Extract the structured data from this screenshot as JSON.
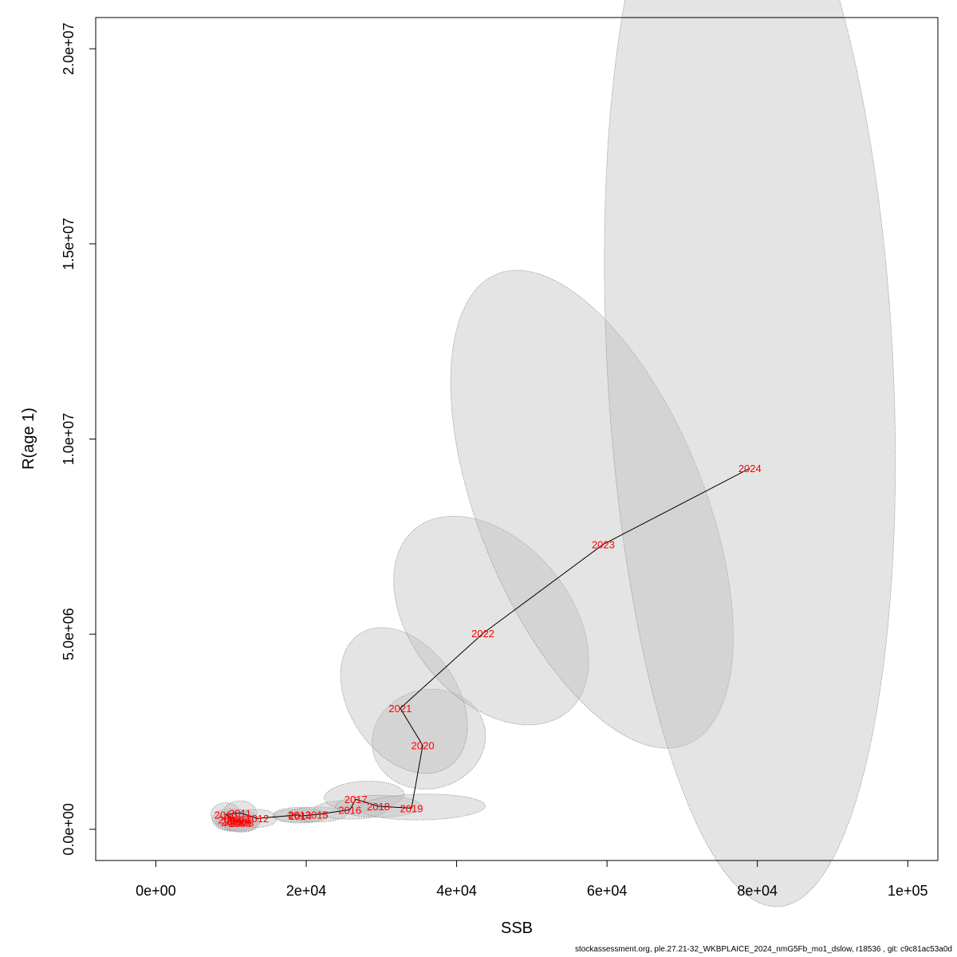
{
  "chart_data": {
    "type": "scatter",
    "xlabel": "SSB",
    "ylabel": "R(age 1)",
    "xlim": [
      -8000,
      104000
    ],
    "ylim": [
      -800000,
      20800000
    ],
    "x_ticks": [
      {
        "value": 0,
        "label": "0e+00"
      },
      {
        "value": 20000,
        "label": "2e+04"
      },
      {
        "value": 40000,
        "label": "4e+04"
      },
      {
        "value": 60000,
        "label": "6e+04"
      },
      {
        "value": 80000,
        "label": "8e+04"
      },
      {
        "value": 100000,
        "label": "1e+05"
      }
    ],
    "y_ticks": [
      {
        "value": 0,
        "label": "0.0e+00"
      },
      {
        "value": 5000000,
        "label": "5.0e+06"
      },
      {
        "value": 10000000,
        "label": "1.0e+07"
      },
      {
        "value": 15000000,
        "label": "1.5e+07"
      },
      {
        "value": 20000000,
        "label": "2.0e+07"
      }
    ],
    "grid": false,
    "colors": {
      "point_label": "#ff0000",
      "path_line": "#000000",
      "ellipse_fill": "#bebebe",
      "ellipse_fill_opacity": 0.42,
      "ellipse_stroke": "#8c8c8c"
    },
    "points": [
      {
        "year": "2004",
        "ssb": 11000,
        "r": 230000
      },
      {
        "year": "2005",
        "ssb": 10200,
        "r": 190000
      },
      {
        "year": "2006",
        "ssb": 10600,
        "r": 210000
      },
      {
        "year": "2007",
        "ssb": 9800,
        "r": 250000
      },
      {
        "year": "2008",
        "ssb": 11500,
        "r": 170000
      },
      {
        "year": "2009",
        "ssb": 11200,
        "r": 160000
      },
      {
        "year": "2010",
        "ssb": 9300,
        "r": 380000
      },
      {
        "year": "2011",
        "ssb": 11200,
        "r": 420000
      },
      {
        "year": "2012",
        "ssb": 13500,
        "r": 280000
      },
      {
        "year": "2013",
        "ssb": 19100,
        "r": 370000
      },
      {
        "year": "2014",
        "ssb": 19200,
        "r": 340000
      },
      {
        "year": "2015",
        "ssb": 21400,
        "r": 380000
      },
      {
        "year": "2016",
        "ssb": 25800,
        "r": 500000
      },
      {
        "year": "2017",
        "ssb": 26600,
        "r": 770000
      },
      {
        "year": "2018",
        "ssb": 29600,
        "r": 590000
      },
      {
        "year": "2019",
        "ssb": 34000,
        "r": 540000
      },
      {
        "year": "2020",
        "ssb": 35500,
        "r": 2150000
      },
      {
        "year": "2021",
        "ssb": 32500,
        "r": 3100000
      },
      {
        "year": "2022",
        "ssb": 43500,
        "r": 5020000
      },
      {
        "year": "2023",
        "ssb": 59500,
        "r": 7300000
      },
      {
        "year": "2024",
        "ssb": 79000,
        "r": 9250000
      }
    ],
    "confidence_regions": [
      {
        "year": "2004",
        "cx": 11000,
        "cy": 230000,
        "rx": 2600,
        "ry": 280000,
        "angle": 0
      },
      {
        "year": "2005",
        "cx": 10200,
        "cy": 190000,
        "rx": 2300,
        "ry": 240000,
        "angle": 0
      },
      {
        "year": "2006",
        "cx": 10600,
        "cy": 210000,
        "rx": 2500,
        "ry": 260000,
        "angle": 0
      },
      {
        "year": "2007",
        "cx": 9800,
        "cy": 250000,
        "rx": 2300,
        "ry": 280000,
        "angle": 0
      },
      {
        "year": "2008",
        "cx": 11500,
        "cy": 170000,
        "rx": 2300,
        "ry": 240000,
        "angle": 0
      },
      {
        "year": "2009",
        "cx": 11200,
        "cy": 160000,
        "rx": 2300,
        "ry": 230000,
        "angle": 0
      },
      {
        "year": "2010",
        "cx": 9300,
        "cy": 380000,
        "rx": 2000,
        "ry": 300000,
        "angle": 0
      },
      {
        "year": "2011",
        "cx": 11200,
        "cy": 420000,
        "rx": 2200,
        "ry": 310000,
        "angle": 0
      },
      {
        "year": "2012",
        "cx": 13500,
        "cy": 280000,
        "rx": 2600,
        "ry": 230000,
        "angle": 0
      },
      {
        "year": "2013",
        "cx": 19100,
        "cy": 370000,
        "rx": 3500,
        "ry": 190000,
        "angle": 0
      },
      {
        "year": "2014",
        "cx": 19200,
        "cy": 340000,
        "rx": 3600,
        "ry": 180000,
        "angle": 0
      },
      {
        "year": "2015",
        "cx": 21400,
        "cy": 380000,
        "rx": 3900,
        "ry": 190000,
        "angle": 0
      },
      {
        "year": "2016",
        "cx": 25800,
        "cy": 500000,
        "rx": 4800,
        "ry": 240000,
        "angle": 0
      },
      {
        "year": "2017",
        "cx": 27700,
        "cy": 850000,
        "rx": 5300,
        "ry": 380000,
        "angle": -3
      },
      {
        "year": "2018",
        "cx": 29600,
        "cy": 590000,
        "rx": 5700,
        "ry": 280000,
        "angle": 0
      },
      {
        "year": "2019",
        "cx": 35400,
        "cy": 570000,
        "rx": 8400,
        "ry": 330000,
        "angle": -1
      },
      {
        "year": "2020",
        "cx": 36300,
        "cy": 2310000,
        "rx": 7600,
        "ry": 1270000,
        "angle": -13
      },
      {
        "year": "2021",
        "cx": 33000,
        "cy": 3300000,
        "rx": 7200,
        "ry": 2050000,
        "angle": -34
      },
      {
        "year": "2022",
        "cx": 44600,
        "cy": 5350000,
        "rx": 10500,
        "ry": 3050000,
        "angle": -40
      },
      {
        "year": "2023",
        "cx": 58000,
        "cy": 8200000,
        "rx": 15000,
        "ry": 6500000,
        "angle": -22
      },
      {
        "year": "2024",
        "cx": 79000,
        "cy": 12000000,
        "rx": 19000,
        "ry": 14000000,
        "angle": -3
      }
    ]
  },
  "footer": "stockassessment.org, ple.27.21-32_WKBPLAICE_2024_nmG5Fb_mo1_dslow, r18536 , git: c9c81ac53a0d"
}
